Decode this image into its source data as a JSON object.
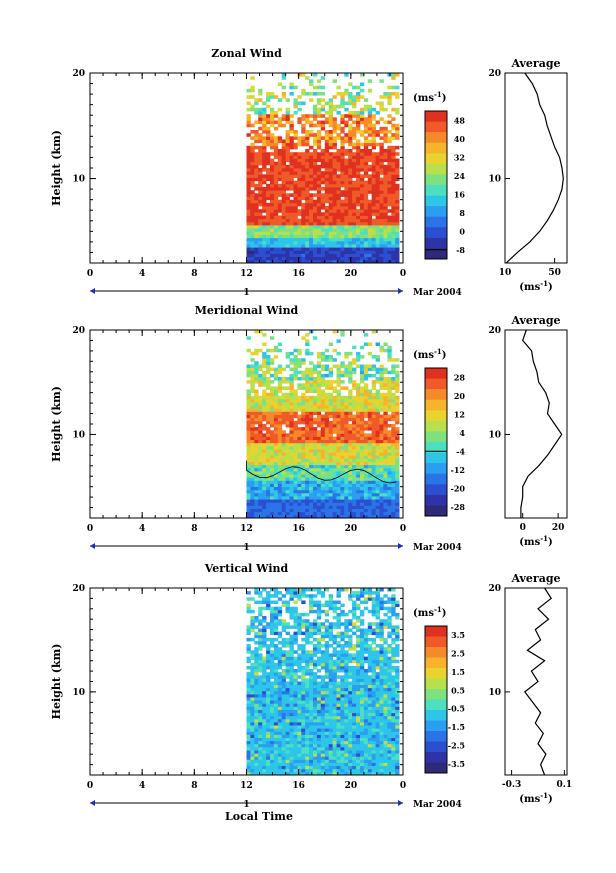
{
  "footer": {
    "xlabel": "Local Time"
  },
  "chart_data": [
    {
      "type": "heatmap",
      "title": "Zonal Wind",
      "ylabel": "Height (km)",
      "xlim": [
        0,
        24
      ],
      "ylim": [
        2,
        20
      ],
      "xticks": [
        "0",
        "4",
        "8",
        "12",
        "16",
        "20",
        "0"
      ],
      "yticks": [
        "10",
        "20"
      ],
      "date_bar": {
        "label": "1",
        "right_label": "Mar 2004"
      },
      "data_start_hour": 12,
      "colorbar": {
        "unit": "(ms",
        "unit_sup": "-1",
        "unit_close": ")",
        "ticks": [
          "48",
          "40",
          "32",
          "24",
          "16",
          "8",
          "0",
          "-8"
        ],
        "colors": [
          "#e03020",
          "#f05a28",
          "#f68a2a",
          "#f7b32b",
          "#ead22f",
          "#b8e04a",
          "#7fe07f",
          "#4de0c0",
          "#2dc6e8",
          "#2a9ef0",
          "#2a74e8",
          "#2b4fd0",
          "#2d34a8",
          "#2e2a78"
        ]
      },
      "profile": {
        "title": "Average",
        "xlim": [
          10,
          60
        ],
        "xticks": [
          "10",
          "50"
        ],
        "xlabel": "(ms",
        "xlabel_sup": "-1",
        "xlabel_close": ")",
        "heights": [
          2,
          3,
          4,
          5,
          6,
          7,
          8,
          9,
          10,
          11,
          12,
          13,
          14,
          15,
          16,
          17,
          18,
          19,
          20
        ],
        "values": [
          11,
          20,
          30,
          38,
          44,
          49,
          53,
          56,
          57,
          56,
          54,
          50,
          47,
          44,
          42,
          38,
          36,
          32,
          26
        ]
      }
    },
    {
      "type": "heatmap",
      "title": "Meridional Wind",
      "ylabel": "Height (km)",
      "xlim": [
        0,
        24
      ],
      "ylim": [
        2,
        20
      ],
      "xticks": [
        "0",
        "4",
        "8",
        "12",
        "16",
        "20",
        "0"
      ],
      "yticks": [
        "10",
        "20"
      ],
      "date_bar": {
        "label": "1",
        "right_label": "Mar 2004"
      },
      "data_start_hour": 12,
      "colorbar": {
        "unit": "(ms",
        "unit_sup": "-1",
        "unit_close": ")",
        "ticks": [
          "28",
          "20",
          "12",
          "4",
          "-4",
          "-12",
          "-20",
          "-28"
        ],
        "colors": [
          "#e03020",
          "#f05a28",
          "#f68a2a",
          "#f7b32b",
          "#ead22f",
          "#b8e04a",
          "#7fe07f",
          "#4de0c0",
          "#2dc6e8",
          "#2a9ef0",
          "#2a74e8",
          "#2b4fd0",
          "#2d34a8",
          "#2e2a78"
        ]
      },
      "profile": {
        "title": "Average",
        "xlim": [
          -10,
          25
        ],
        "xticks": [
          "0",
          "20"
        ],
        "xlabel": "(ms",
        "xlabel_sup": "-1",
        "xlabel_close": ")",
        "heights": [
          2,
          3,
          4,
          5,
          6,
          7,
          8,
          9,
          10,
          11,
          12,
          13,
          14,
          15,
          16,
          17,
          18,
          19,
          20
        ],
        "values": [
          -1,
          -1,
          0,
          0,
          3,
          9,
          14,
          18,
          22,
          18,
          14,
          15,
          13,
          9,
          8,
          6,
          5,
          0,
          2
        ]
      }
    },
    {
      "type": "heatmap",
      "title": "Vertical Wind",
      "ylabel": "Height (km)",
      "xlim": [
        0,
        24
      ],
      "ylim": [
        2,
        20
      ],
      "xticks": [
        "0",
        "4",
        "8",
        "12",
        "16",
        "20",
        "0"
      ],
      "yticks": [
        "10",
        "20"
      ],
      "date_bar": {
        "label": "1",
        "right_label": "Mar 2004"
      },
      "data_start_hour": 12,
      "colorbar": {
        "unit": "(ms",
        "unit_sup": "-1",
        "unit_close": ")",
        "ticks": [
          "3.5",
          "2.5",
          "1.5",
          "0.5",
          "-0.5",
          "-1.5",
          "-2.5",
          "-3.5"
        ],
        "colors": [
          "#e03020",
          "#f05a28",
          "#f68a2a",
          "#f7b32b",
          "#ead22f",
          "#b8e04a",
          "#7fe07f",
          "#4de0c0",
          "#2dc6e8",
          "#2a9ef0",
          "#2a74e8",
          "#2b4fd0",
          "#2d34a8",
          "#2e2a78"
        ]
      },
      "profile": {
        "title": "Average",
        "xlim": [
          -0.35,
          0.12
        ],
        "xticks": [
          "-0.3",
          "0.1"
        ],
        "xlabel": "(ms",
        "xlabel_sup": "-1",
        "xlabel_close": ")",
        "heights": [
          2,
          3,
          4,
          5,
          6,
          7,
          8,
          9,
          10,
          11,
          12,
          13,
          14,
          15,
          16,
          17,
          18,
          19,
          20
        ],
        "values": [
          -0.05,
          -0.08,
          -0.04,
          -0.1,
          -0.06,
          -0.12,
          -0.08,
          -0.14,
          -0.2,
          -0.1,
          -0.15,
          -0.05,
          -0.18,
          -0.08,
          -0.12,
          -0.02,
          -0.1,
          0.0,
          -0.05
        ]
      }
    }
  ]
}
